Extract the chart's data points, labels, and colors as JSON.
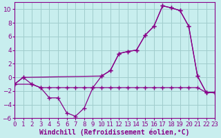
{
  "xlabel": "Windchill (Refroidissement éolien,°C)",
  "xlim": [
    0,
    23
  ],
  "ylim": [
    -6,
    11
  ],
  "background_color": "#c8eeee",
  "grid_color": "#a0cccc",
  "line_color": "#880088",
  "line1_x": [
    0,
    1,
    2,
    3,
    4,
    5,
    6,
    7,
    8,
    9,
    10,
    11,
    12,
    13,
    14,
    15,
    16,
    17,
    18,
    19,
    20,
    21,
    22,
    23
  ],
  "line1_y": [
    -1,
    0,
    -1,
    -1.5,
    -3,
    -3,
    -5.2,
    -5.7,
    -4.5,
    -1.5,
    0.2,
    1.0,
    3.5,
    3.8,
    4.0,
    6.2,
    7.5,
    10.5,
    10.2,
    9.8,
    7.5,
    0.2,
    -2.2,
    -2.2
  ],
  "line2_x": [
    0,
    1,
    10,
    11,
    12,
    13,
    14,
    15,
    16,
    17,
    18,
    19,
    20,
    21,
    22,
    23
  ],
  "line2_y": [
    -1,
    0,
    0.2,
    1.0,
    3.5,
    3.8,
    4.0,
    6.2,
    7.5,
    10.5,
    10.2,
    9.8,
    7.5,
    0.2,
    -2.2,
    -2.2
  ],
  "line3_x": [
    0,
    2,
    3,
    4,
    5,
    6,
    7,
    8,
    9,
    10,
    11,
    12,
    13,
    14,
    15,
    16,
    17,
    18,
    19,
    20,
    21,
    22,
    23
  ],
  "line3_y": [
    -1,
    -1,
    -1.5,
    -1.5,
    -1.5,
    -1.5,
    -1.5,
    -1.5,
    -1.5,
    -1.5,
    -1.5,
    -1.5,
    -1.5,
    -1.5,
    -1.5,
    -1.5,
    -1.5,
    -1.5,
    -1.5,
    -1.5,
    -1.5,
    -2.2,
    -2.2
  ],
  "xticks": [
    0,
    1,
    2,
    3,
    4,
    5,
    6,
    7,
    8,
    9,
    10,
    11,
    12,
    13,
    14,
    15,
    16,
    17,
    18,
    19,
    20,
    21,
    22,
    23
  ],
  "yticks": [
    -6,
    -4,
    -2,
    0,
    2,
    4,
    6,
    8,
    10
  ],
  "tick_fontsize": 6.5,
  "label_fontsize": 7
}
